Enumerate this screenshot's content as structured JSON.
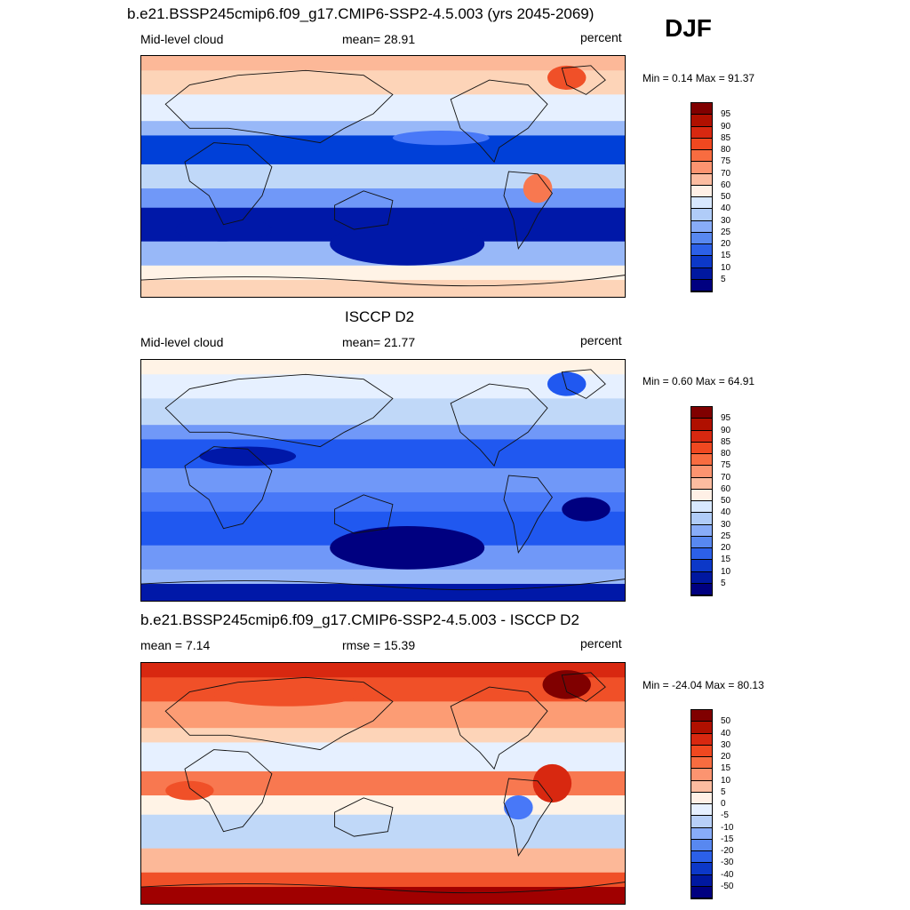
{
  "season": "DJF",
  "scale_seq": [
    "#000080",
    "#0018a8",
    "#0040d8",
    "#2058f0",
    "#4878f8",
    "#7098f8",
    "#98b8f8",
    "#c0d8f8",
    "#e6f0ff",
    "#fff3e6",
    "#fdd4b8",
    "#fcb898",
    "#fc9c74",
    "#f87850",
    "#f05028",
    "#d82810",
    "#a00000",
    "#800000"
  ],
  "panels": [
    {
      "title": "b.e21.BSSP245cmip6.f09_g17.CMIP6-SSP2-4.5.003 (yrs 2045-2069)",
      "left_label": "Mid-level cloud",
      "center_label": "mean=  28.91",
      "right_label": "percent",
      "minmax": "Min =   0.14 Max =  91.37",
      "ticks": [
        "95",
        "90",
        "85",
        "80",
        "75",
        "70",
        "60",
        "50",
        "40",
        "30",
        "25",
        "20",
        "15",
        "10",
        "5"
      ],
      "colors": [
        "#800000",
        "#b01000",
        "#d82810",
        "#f04820",
        "#f86c40",
        "#fc9470",
        "#fcbca0",
        "#fff0e6",
        "#d8e8ff",
        "#b0ccf8",
        "#88acf8",
        "#5888f0",
        "#2c60e8",
        "#0c38c8",
        "#0018a0",
        "#000080"
      ]
    },
    {
      "title": "ISCCP D2",
      "left_label": "Mid-level cloud",
      "center_label": "mean=  21.77",
      "right_label": "percent",
      "minmax": "Min =   0.60 Max =  64.91",
      "ticks": [
        "95",
        "90",
        "85",
        "80",
        "75",
        "70",
        "60",
        "50",
        "40",
        "30",
        "25",
        "20",
        "15",
        "10",
        "5"
      ],
      "colors": [
        "#800000",
        "#b01000",
        "#d82810",
        "#f04820",
        "#f86c40",
        "#fc9470",
        "#fcbca0",
        "#fff0e6",
        "#d8e8ff",
        "#b0ccf8",
        "#88acf8",
        "#5888f0",
        "#2c60e8",
        "#0c38c8",
        "#0018a0",
        "#000080"
      ]
    },
    {
      "title": "b.e21.BSSP245cmip6.f09_g17.CMIP6-SSP2-4.5.003 - ISCCP D2",
      "left_label": "mean =   7.14",
      "center_label": "rmse =  15.39",
      "right_label": "percent",
      "minmax": "Min = -24.04 Max =  80.13",
      "ticks": [
        "50",
        "40",
        "30",
        "20",
        "15",
        "10",
        "5",
        "0",
        "-5",
        "-10",
        "-15",
        "-20",
        "-30",
        "-40",
        "-50"
      ],
      "colors": [
        "#800000",
        "#b01000",
        "#d82810",
        "#f04820",
        "#f86c40",
        "#fc9470",
        "#fcbca0",
        "#fff0e6",
        "#e6f0ff",
        "#b8d0f8",
        "#88acf8",
        "#5888f0",
        "#2c60e8",
        "#0c38c8",
        "#0018a0",
        "#000080"
      ]
    }
  ]
}
